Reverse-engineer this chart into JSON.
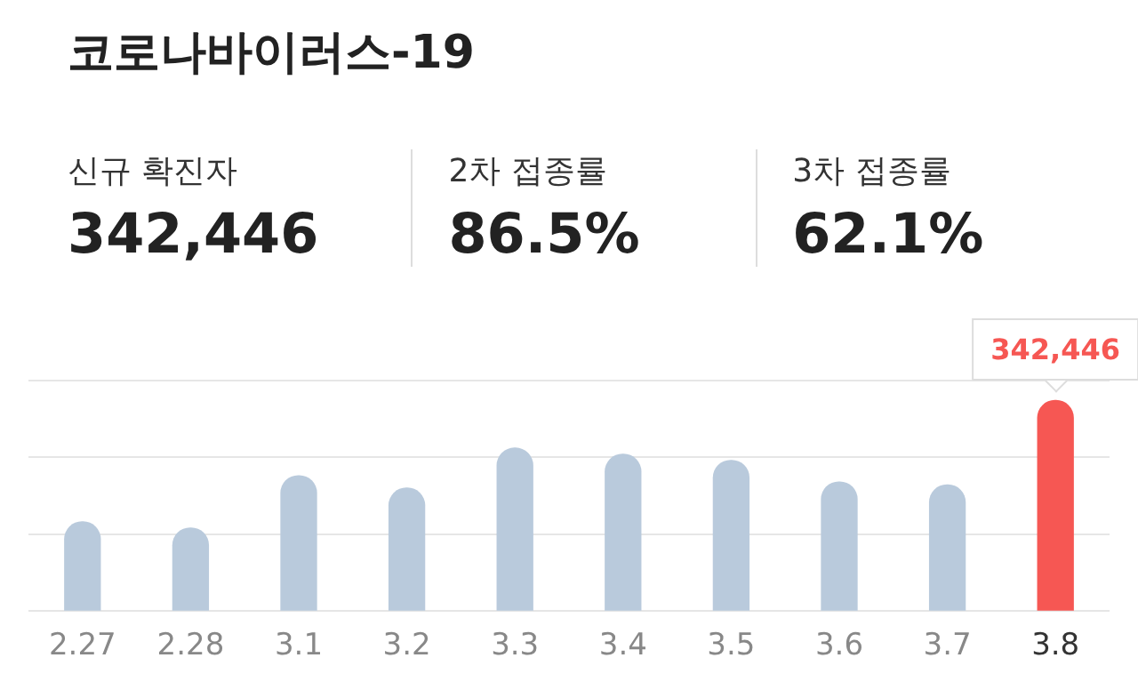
{
  "chart_data": {
    "type": "bar",
    "title": "코로나바이러스-19",
    "annotations": [
      "신규 확진자",
      "342,446",
      "2차 접종률",
      "86.5%",
      "3차 접종률",
      "62.1%"
    ],
    "categories": [
      "2.27",
      "2.28",
      "3.1",
      "3.2",
      "3.3",
      "3.4",
      "3.5",
      "3.6",
      "3.7",
      "3.8"
    ],
    "values": [
      145000,
      135000,
      220000,
      200000,
      265000,
      255000,
      245000,
      210000,
      205000,
      342446
    ],
    "colors": [
      "#b9cadc",
      "#b9cadc",
      "#b9cadc",
      "#b9cadc",
      "#b9cadc",
      "#b9cadc",
      "#b9cadc",
      "#b9cadc",
      "#b9cadc",
      "#f65753"
    ],
    "value_labels": [
      null,
      null,
      null,
      null,
      null,
      null,
      null,
      null,
      null,
      "342,446"
    ],
    "ylim": [
      0,
      375000
    ],
    "yticks": [
      {
        "value": 0,
        "label": null
      },
      {
        "value": 125000,
        "label": null
      },
      {
        "value": 250000,
        "label": null
      },
      {
        "value": 375000,
        "label": null
      }
    ],
    "grid": "y",
    "legend": false
  }
}
